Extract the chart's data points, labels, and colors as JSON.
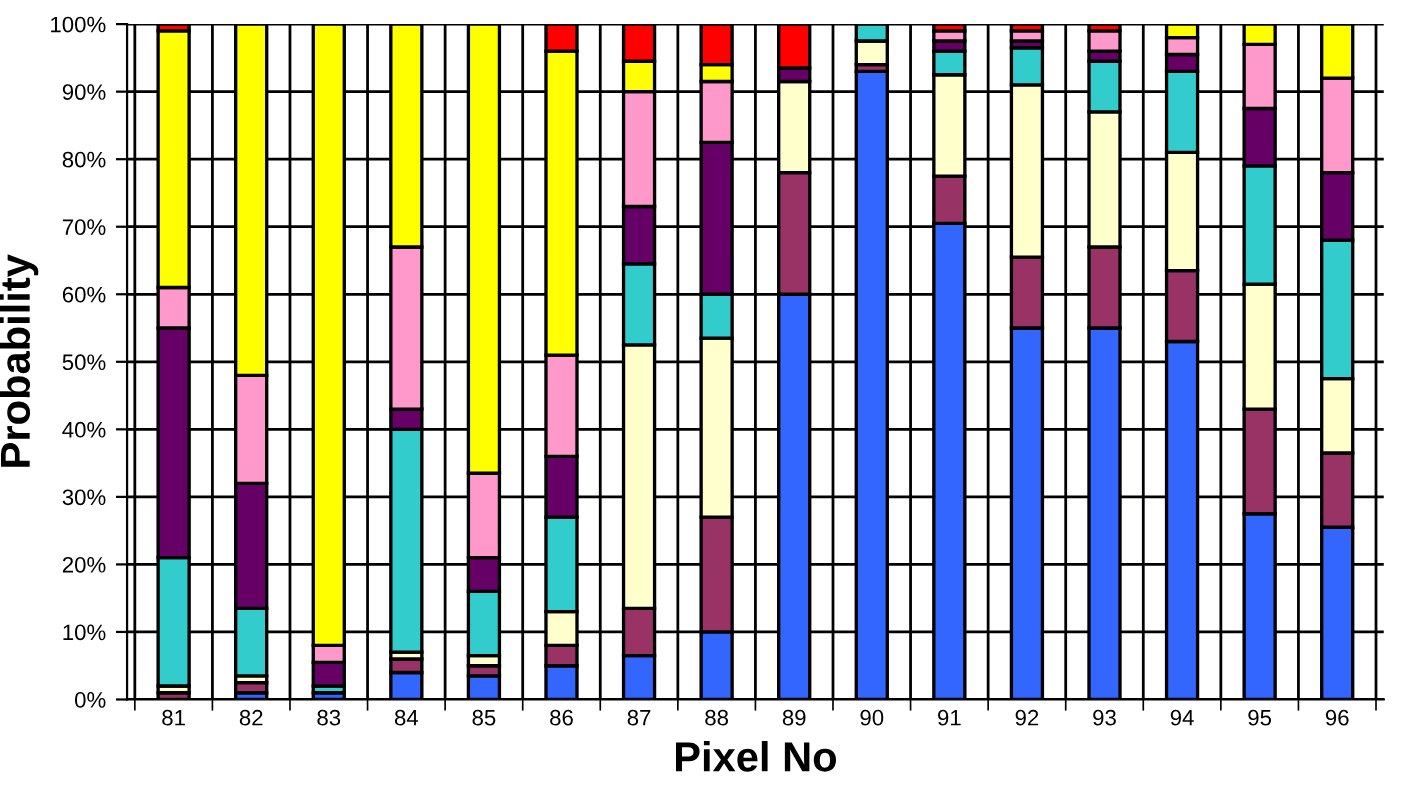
{
  "chart_data": {
    "type": "bar",
    "stacked": true,
    "xlabel": "Pixel No",
    "ylabel": "Probability",
    "categories": [
      "81",
      "82",
      "83",
      "84",
      "85",
      "86",
      "87",
      "88",
      "89",
      "90",
      "91",
      "92",
      "93",
      "94",
      "95",
      "96"
    ],
    "ylim": [
      0,
      100
    ],
    "yticks": [
      {
        "value": 0,
        "label": "0%"
      },
      {
        "value": 10,
        "label": "10%"
      },
      {
        "value": 20,
        "label": "20%"
      },
      {
        "value": 30,
        "label": "30%"
      },
      {
        "value": 40,
        "label": "40%"
      },
      {
        "value": 50,
        "label": "50%"
      },
      {
        "value": 60,
        "label": "60%"
      },
      {
        "value": 70,
        "label": "70%"
      },
      {
        "value": 80,
        "label": "80%"
      },
      {
        "value": 90,
        "label": "90%"
      },
      {
        "value": 100,
        "label": "100%"
      }
    ],
    "grid": true,
    "legend": false,
    "series": [
      {
        "color": "#3366ff",
        "values": [
          0,
          1,
          1,
          4,
          3.5,
          5,
          6.5,
          10,
          60,
          93,
          70.5,
          55,
          55,
          53,
          27.5,
          25.5
        ]
      },
      {
        "color": "#993366",
        "values": [
          1,
          1.5,
          0,
          2,
          1.5,
          3,
          7,
          17,
          18,
          1,
          7,
          10.5,
          12,
          10.5,
          15.5,
          11
        ]
      },
      {
        "color": "#ffffcc",
        "values": [
          1,
          1,
          0,
          1,
          1.5,
          5,
          39,
          26.5,
          13.5,
          3.5,
          15,
          25.5,
          20,
          17.5,
          18.5,
          11
        ]
      },
      {
        "color": "#33cccc",
        "values": [
          19,
          10,
          1,
          33,
          9.5,
          14,
          12,
          6.5,
          0,
          2.5,
          3.5,
          5.5,
          7.5,
          12,
          17.5,
          20.5
        ]
      },
      {
        "color": "#660066",
        "values": [
          34,
          18.5,
          3.5,
          3,
          5,
          9,
          8.5,
          22.5,
          2,
          0,
          1.5,
          1,
          1.5,
          2.5,
          8.5,
          10
        ]
      },
      {
        "color": "#ff99cc",
        "values": [
          6,
          16,
          2.5,
          24,
          12.5,
          15,
          17,
          9,
          0,
          0,
          1.5,
          1.5,
          3,
          2.5,
          9.5,
          14
        ]
      },
      {
        "color": "#ffff00",
        "values": [
          38,
          52,
          92,
          33,
          66.5,
          45,
          4.5,
          2.5,
          0,
          0,
          0,
          0,
          0,
          2,
          3,
          8
        ]
      },
      {
        "color": "#ff0000",
        "values": [
          1,
          0,
          0,
          0,
          0,
          4,
          5.5,
          6,
          6.5,
          0,
          1,
          1,
          1,
          0,
          0,
          0
        ]
      }
    ]
  }
}
